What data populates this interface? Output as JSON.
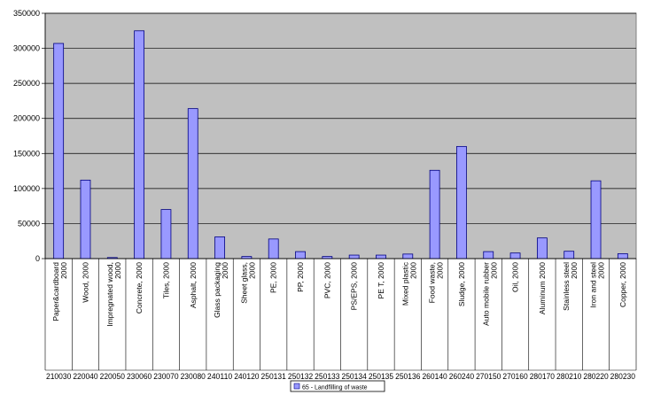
{
  "chart_data": {
    "type": "bar",
    "categories": [
      {
        "label": "Paper&cardboard 2000",
        "code": "210030"
      },
      {
        "label": "Wood, 2000",
        "code": "220040"
      },
      {
        "label": "Impregnated wood, 2000",
        "code": "220050"
      },
      {
        "label": "Concrete, 2000",
        "code": "230060"
      },
      {
        "label": "Tiles, 2000",
        "code": "230070"
      },
      {
        "label": "Asphalt, 2000",
        "code": "230080"
      },
      {
        "label": "Glass packaging 2000",
        "code": "240110"
      },
      {
        "label": "Sheet glass, 2000",
        "code": "240120"
      },
      {
        "label": "PE, 2000",
        "code": "250131"
      },
      {
        "label": "PP, 2000",
        "code": "250132"
      },
      {
        "label": "PVC, 2000",
        "code": "250133"
      },
      {
        "label": "PS/EPS, 2000",
        "code": "250134"
      },
      {
        "label": "PE T, 2000",
        "code": "250135"
      },
      {
        "label": "Mixed plastic 2000",
        "code": "250136"
      },
      {
        "label": "Food waste, 2000",
        "code": "260140"
      },
      {
        "label": "Sludge, 2000",
        "code": "260240"
      },
      {
        "label": "Auto mobile rubber 2000",
        "code": "270150"
      },
      {
        "label": "Oil, 2000",
        "code": "270160"
      },
      {
        "label": "Aluminum 2000",
        "code": "280170"
      },
      {
        "label": "Stainless steel 2000",
        "code": "280210"
      },
      {
        "label": "Iron and steel 2000",
        "code": "280220"
      },
      {
        "label": "Copper, 2000",
        "code": "280230"
      }
    ],
    "series": [
      {
        "name": "65 - Landfilling of waste",
        "values": [
          307000,
          112000,
          1500,
          325000,
          70000,
          214000,
          31000,
          3000,
          28000,
          10000,
          3000,
          5000,
          5000,
          6500,
          126000,
          160000,
          10000,
          8000,
          29500,
          10500,
          111000,
          7000
        ],
        "color": "#9999ff"
      }
    ],
    "title": "",
    "xlabel": "",
    "ylabel": "",
    "ylim": [
      0,
      350000
    ],
    "yticks": [
      "0",
      "50000",
      "100000",
      "150000",
      "200000",
      "250000",
      "300000",
      "350000"
    ],
    "grid": true,
    "plot_background": "#c0c0c0",
    "legend_position": "bottom-center"
  }
}
